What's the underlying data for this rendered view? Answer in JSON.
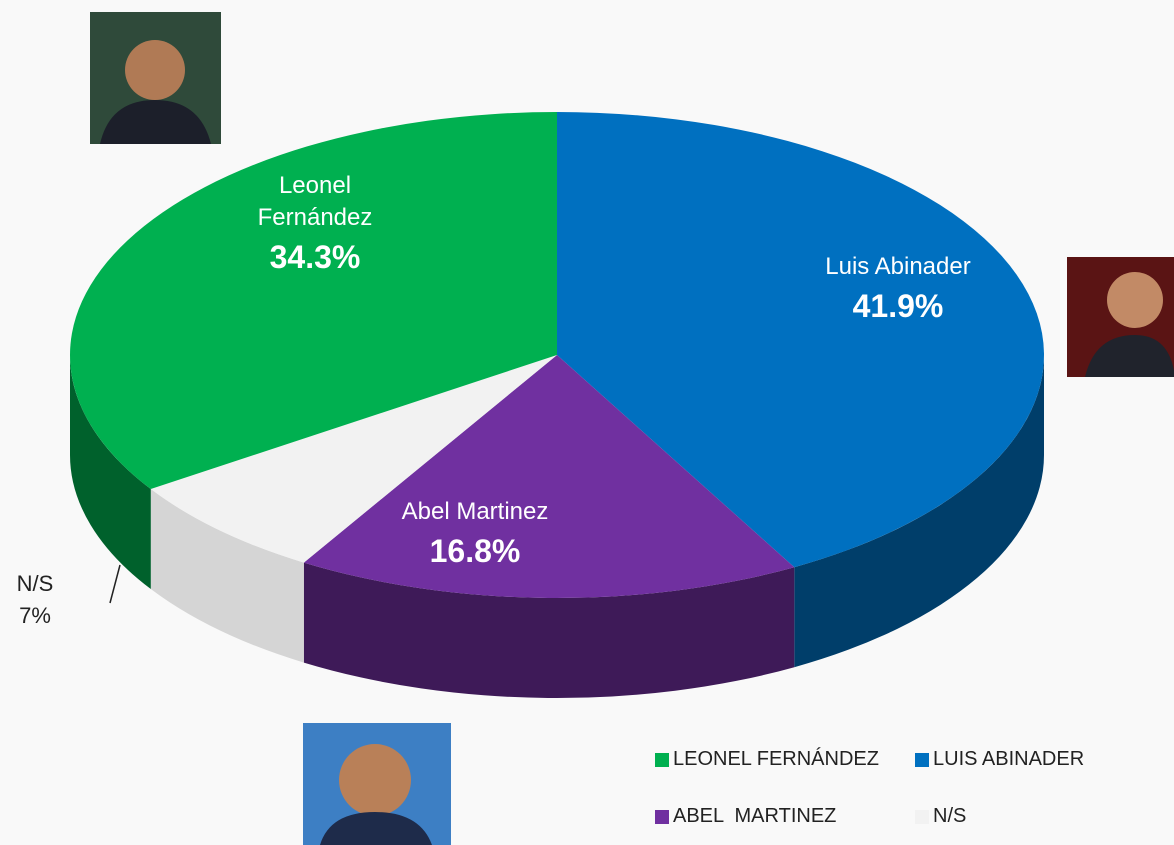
{
  "chart_data": {
    "type": "pie",
    "categories": [
      "Luis Abinader",
      "Abel Martinez",
      "N/S",
      "Leonel Fernández"
    ],
    "values": [
      41.9,
      16.8,
      7,
      34.3
    ],
    "value_labels": [
      "41.9%",
      "16.8%",
      "7%",
      "34.3%"
    ],
    "colors": [
      "#0070c0",
      "#7030a0",
      "#f2f2f2",
      "#00b050"
    ],
    "legend_labels": [
      "LUIS ABINADER",
      "ABEL  MARTINEZ",
      "N/S",
      "LEONEL FERNÁNDEZ"
    ]
  }
}
